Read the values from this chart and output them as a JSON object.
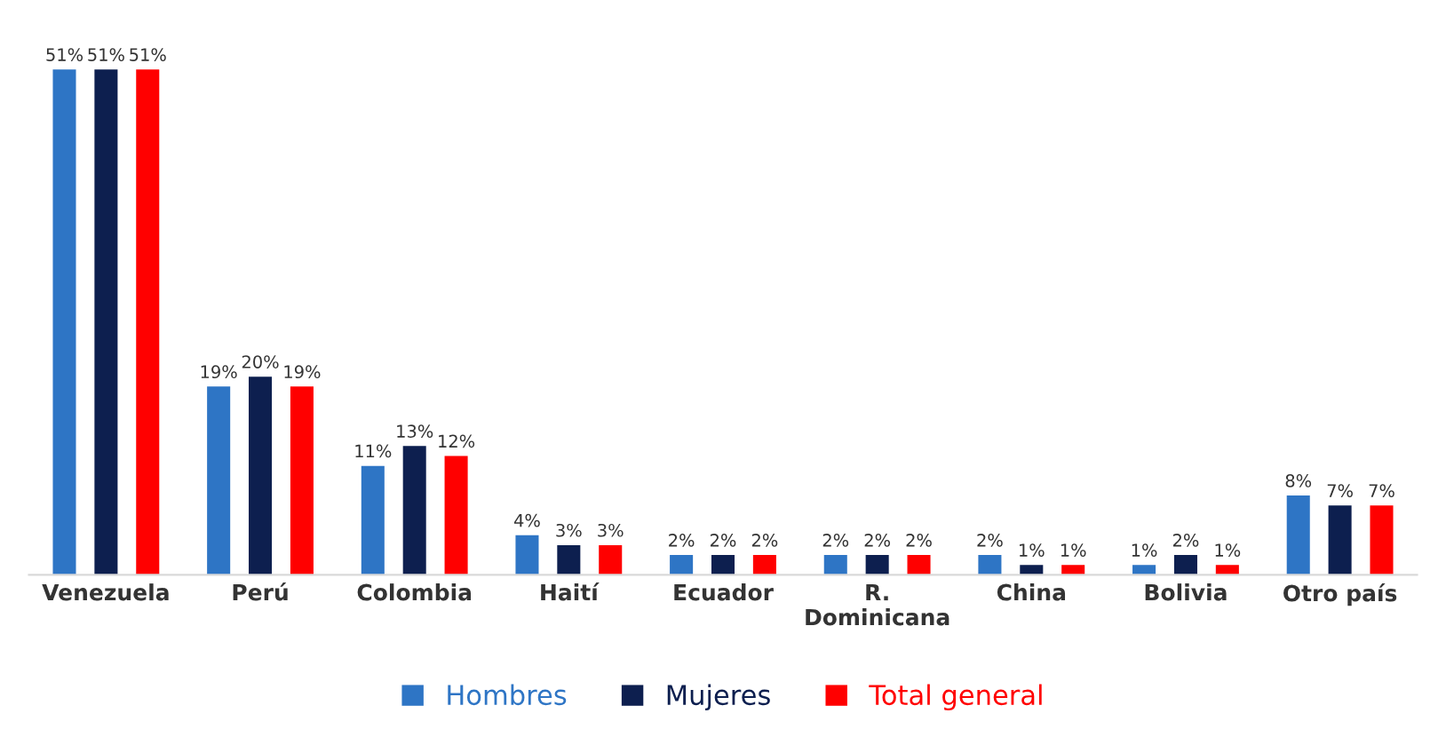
{
  "chart_data": {
    "type": "bar",
    "categories": [
      "Venezuela",
      "Perú",
      "Colombia",
      "Haití",
      "Ecuador",
      "R. Dominicana",
      "China",
      "Bolivia",
      "Otro país"
    ],
    "series": [
      {
        "name": "Hombres",
        "color": "#2e75c5",
        "values": [
          51,
          19,
          11,
          4,
          2,
          2,
          2,
          1,
          8
        ],
        "value_labels": [
          "51%",
          "19%",
          "11%",
          "4%",
          "2%",
          "2%",
          "2%",
          "1%",
          "8%"
        ]
      },
      {
        "name": "Mujeres",
        "color": "#0d1f4f",
        "values": [
          51,
          20,
          13,
          3,
          2,
          2,
          1,
          2,
          7
        ],
        "value_labels": [
          "51%",
          "20%",
          "13%",
          "3%",
          "2%",
          "2%",
          "1%",
          "2%",
          "7%"
        ]
      },
      {
        "name": "Total general",
        "color": "#ff0000",
        "values": [
          51,
          19,
          12,
          3,
          2,
          2,
          1,
          1,
          7
        ],
        "value_labels": [
          "51%",
          "19%",
          "12%",
          "3%",
          "2%",
          "2%",
          "1%",
          "1%",
          "7%"
        ]
      }
    ],
    "legend": "bottom",
    "grid": false,
    "tick_labels": "x"
  }
}
